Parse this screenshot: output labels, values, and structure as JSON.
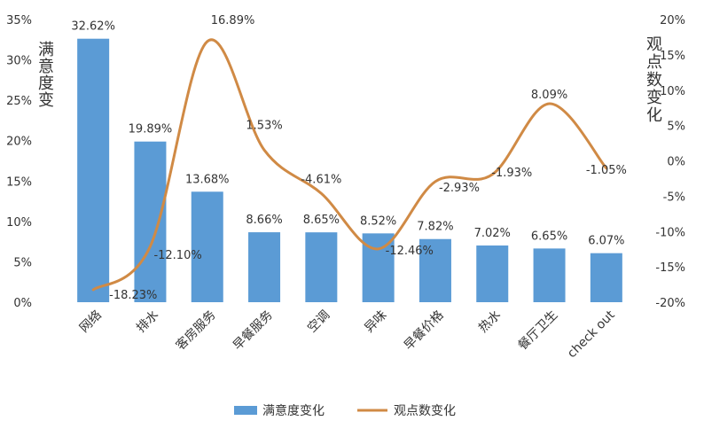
{
  "chart_data": {
    "type": "bar",
    "categories": [
      "网络",
      "排水",
      "客房服务",
      "早餐服务",
      "空调",
      "异味",
      "早餐价格",
      "热水",
      "餐厅卫生",
      "check out"
    ],
    "series": [
      {
        "name": "满意度变化",
        "type": "bar",
        "axis": "left",
        "color": "#5B9BD5",
        "values": [
          32.62,
          19.89,
          13.68,
          8.66,
          8.65,
          8.52,
          7.82,
          7.02,
          6.65,
          6.07
        ],
        "labels": [
          "32.62%",
          "19.89%",
          "13.68%",
          "8.66%",
          "8.65%",
          "8.52%",
          "7.82%",
          "7.02%",
          "6.65%",
          "6.07%"
        ]
      },
      {
        "name": "观点数变化",
        "type": "line",
        "axis": "right",
        "color": "#D08A45",
        "values": [
          -18.23,
          -12.1,
          16.89,
          1.53,
          -4.61,
          -12.46,
          -2.93,
          -1.93,
          8.09,
          -1.05
        ],
        "labels": [
          "-18.23%",
          "-12.10%",
          "16.89%",
          "1.53%",
          "-4.61%",
          "-12.46%",
          "-2.93%",
          "-1.93%",
          "8.09%",
          "-1.05%"
        ]
      }
    ],
    "left_axis": {
      "label": "满意度变化",
      "min": 0,
      "max": 35,
      "ticks": [
        0,
        5,
        10,
        15,
        20,
        25,
        30,
        35
      ],
      "tick_labels": [
        "0%",
        "5%",
        "10%",
        "15%",
        "20%",
        "25%",
        "30%",
        "35%"
      ]
    },
    "right_axis": {
      "label": "观点数变化",
      "min": -20,
      "max": 20,
      "ticks": [
        -20,
        -15,
        -10,
        -5,
        0,
        5,
        10,
        15,
        20
      ],
      "tick_labels": [
        "-20%",
        "-15%",
        "-10%",
        "-5%",
        "0%",
        "5%",
        "10%",
        "15%",
        "20%"
      ]
    },
    "grid": false,
    "legend_position": "bottom"
  }
}
